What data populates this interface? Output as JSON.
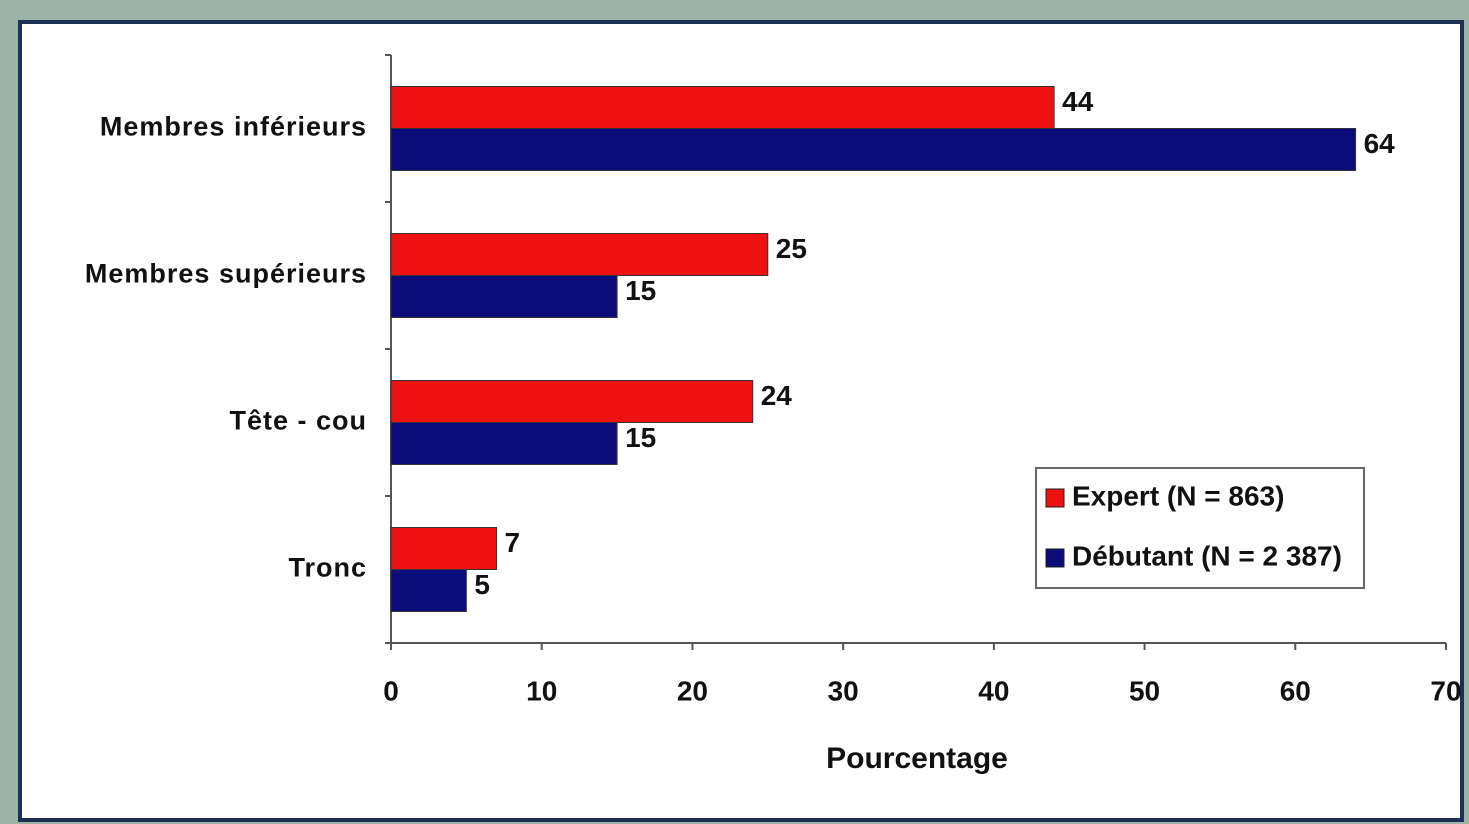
{
  "chart_data": {
    "type": "bar",
    "orientation": "horizontal",
    "categories": [
      "Membres inférieurs",
      "Membres supérieurs",
      "Tête - cou",
      "Tronc"
    ],
    "series": [
      {
        "name": "Expert (N = 863)",
        "color": "#ee1111",
        "values": [
          44,
          25,
          24,
          7
        ]
      },
      {
        "name": "Débutant (N = 2 387)",
        "color": "#0b0b7a",
        "values": [
          64,
          15,
          15,
          5
        ]
      }
    ],
    "xlabel": "Pourcentage",
    "xlim": [
      0,
      70
    ],
    "xticks": [
      0,
      10,
      20,
      30,
      40,
      50,
      60,
      70
    ],
    "legend": "lower right",
    "data_labels": true
  }
}
